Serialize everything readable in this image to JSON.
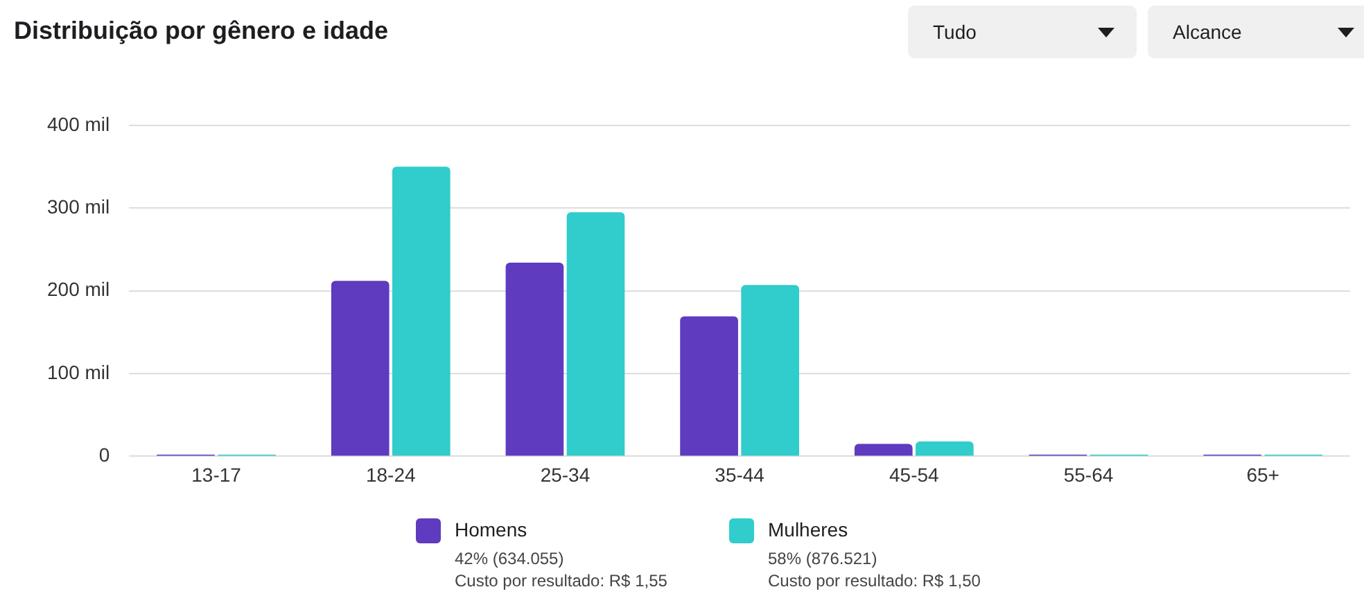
{
  "chart_data": {
    "type": "bar",
    "title": "Distribuição por gênero e idade",
    "categories": [
      "13-17",
      "18-24",
      "25-34",
      "35-44",
      "45-54",
      "55-64",
      "65+"
    ],
    "series": [
      {
        "name": "Homens",
        "color": "#5e3bbf",
        "values": [
          2,
          212,
          234,
          169,
          15,
          2,
          2
        ]
      },
      {
        "name": "Mulheres",
        "color": "#31cccc",
        "values": [
          2,
          350,
          295,
          207,
          18,
          2,
          2
        ]
      }
    ],
    "ylim": [
      0,
      400
    ],
    "yticks": [
      0,
      {
        "value": 100,
        "label": "100 mil"
      },
      {
        "value": 200,
        "label": "200 mil"
      },
      {
        "value": 300,
        "label": "300 mil"
      },
      {
        "value": 400,
        "label": "400 mil"
      }
    ],
    "grid": "y",
    "legend": "bottom",
    "annotations": [
      "42% (634.055)",
      "Custo por resultado: R$ 1,55",
      "58% (876.521)",
      "Custo por resultado: R$ 1,50",
      "Tudo",
      "Alcance"
    ]
  }
}
